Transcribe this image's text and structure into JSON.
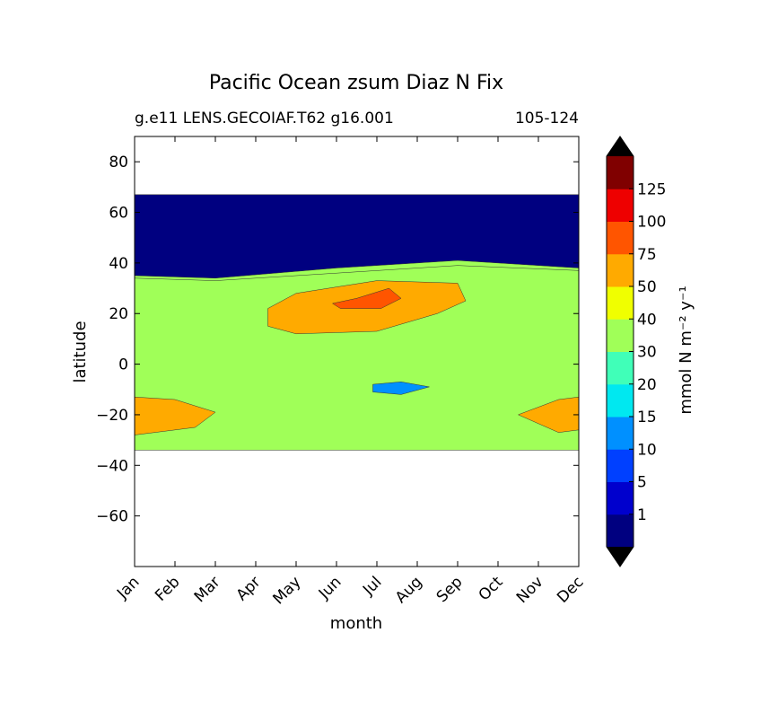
{
  "chart_data": {
    "type": "heatmap",
    "title": "Pacific Ocean zsum Diaz N Fix",
    "subtitle_left": "g.e11 LENS.GECOIAF.T62 g16.001",
    "subtitle_right": "105-124",
    "xlabel": "month",
    "ylabel": "latitude",
    "x_ticks": [
      "Jan",
      "Feb",
      "Mar",
      "Apr",
      "May",
      "Jun",
      "Jul",
      "Aug",
      "Sep",
      "Oct",
      "Nov",
      "Dec"
    ],
    "y_ticks": [
      80,
      60,
      40,
      20,
      0,
      -20,
      -40,
      -60
    ],
    "ylim": [
      -80,
      90
    ],
    "xlim": [
      0,
      11
    ],
    "data_extent_lat": [
      -34,
      67
    ],
    "colorbar": {
      "label": "mmol N m⁻² y⁻¹",
      "levels": [
        0,
        1,
        5,
        10,
        15,
        20,
        30,
        40,
        50,
        75,
        100,
        125,
        150
      ],
      "tick_labels": [
        "1",
        "5",
        "10",
        "15",
        "20",
        "30",
        "40",
        "50",
        "75",
        "100",
        "125"
      ],
      "colors": [
        "#000080",
        "#0000cd",
        "#0040ff",
        "#0090ff",
        "#00e8f0",
        "#40ffb8",
        "#a0ff58",
        "#f0ff00",
        "#ffaa00",
        "#ff5500",
        "#ee0000",
        "#800000"
      ],
      "extend": "both"
    },
    "regions": [
      {
        "level": 0,
        "desc": "northern band (approx. 35-67N)",
        "month_lat": [
          [
            0,
            67
          ],
          [
            11,
            67
          ],
          [
            11,
            38
          ],
          [
            8,
            41
          ],
          [
            5,
            38
          ],
          [
            2,
            34
          ],
          [
            0,
            35
          ]
        ]
      },
      {
        "level": 6,
        "desc": "central band",
        "month_lat": [
          [
            0,
            34
          ],
          [
            2,
            33
          ],
          [
            5,
            36
          ],
          [
            8,
            39
          ],
          [
            11,
            37
          ],
          [
            11,
            -34
          ],
          [
            0,
            -34
          ]
        ]
      },
      {
        "level": 8,
        "desc": "northern maximum Jun-Aug",
        "month_lat": [
          [
            3.3,
            22
          ],
          [
            4,
            28
          ],
          [
            6,
            33
          ],
          [
            8,
            32
          ],
          [
            8.2,
            25
          ],
          [
            7.5,
            20
          ],
          [
            6,
            13
          ],
          [
            4,
            12
          ],
          [
            3.3,
            15
          ]
        ]
      },
      {
        "level": 9,
        "desc": "peak Jun-Jul",
        "month_lat": [
          [
            4.9,
            24
          ],
          [
            5.5,
            26
          ],
          [
            6.3,
            30
          ],
          [
            6.6,
            26
          ],
          [
            6.1,
            22
          ],
          [
            5.1,
            22
          ]
        ]
      },
      {
        "level": 8,
        "desc": "southern maximum Jan",
        "month_lat": [
          [
            0,
            -13
          ],
          [
            1,
            -14
          ],
          [
            2,
            -19
          ],
          [
            1.5,
            -25
          ],
          [
            0,
            -28
          ]
        ]
      },
      {
        "level": 8,
        "desc": "southern maximum Dec",
        "month_lat": [
          [
            9.5,
            -20
          ],
          [
            10.5,
            -14
          ],
          [
            11,
            -13
          ],
          [
            11,
            -26
          ],
          [
            10.5,
            -27
          ]
        ]
      },
      {
        "level": 3,
        "desc": "low south band Jul",
        "month_lat": [
          [
            5.9,
            -8
          ],
          [
            6.6,
            -7
          ],
          [
            7.3,
            -9
          ],
          [
            6.6,
            -12
          ],
          [
            5.9,
            -11
          ]
        ]
      }
    ]
  }
}
